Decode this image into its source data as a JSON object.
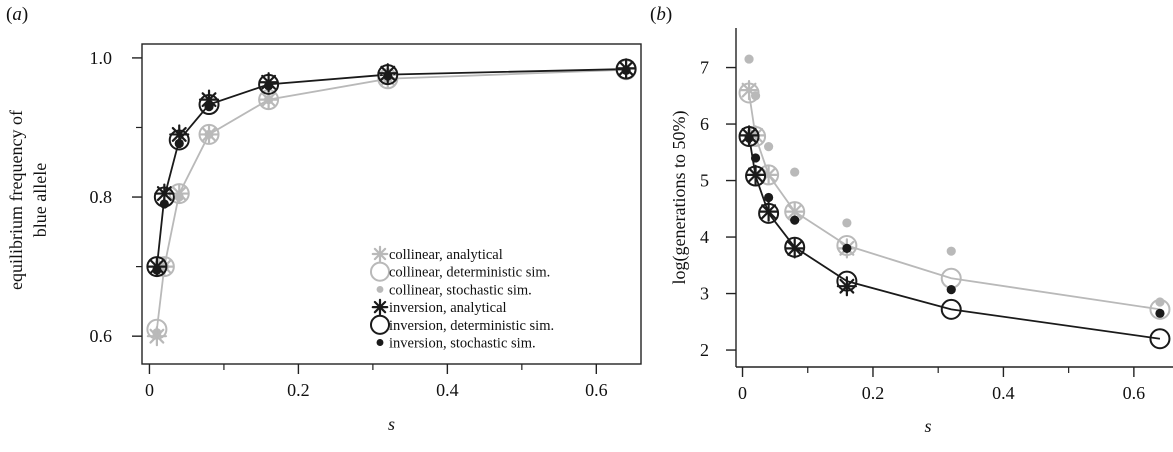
{
  "panels": [
    {
      "label": "(a)"
    },
    {
      "label": "(b)"
    }
  ],
  "colors": {
    "collinear": "#b9b9b9",
    "inversion": "#1a1a1a"
  },
  "legend": [
    {
      "key": "collinear_analytical",
      "label": "collinear, analytical",
      "marker": "asterisk",
      "color": "collinear"
    },
    {
      "key": "collinear_deterministic",
      "label": "collinear, deterministic sim.",
      "marker": "open-circle",
      "color": "collinear"
    },
    {
      "key": "collinear_stochastic",
      "label": "collinear, stochastic sim.",
      "marker": "dot",
      "color": "collinear"
    },
    {
      "key": "inversion_analytical",
      "label": "inversion, analytical",
      "marker": "asterisk",
      "color": "inversion"
    },
    {
      "key": "inversion_deterministic",
      "label": "inversion, deterministic sim.",
      "marker": "open-circle",
      "color": "inversion"
    },
    {
      "key": "inversion_stochastic",
      "label": "inversion, stochastic sim.",
      "marker": "dot",
      "color": "inversion"
    }
  ],
  "chart_data": [
    {
      "type": "line",
      "panel": "(a)",
      "xlabel": "s",
      "ylabel": "equilibrium frequency of blue allele",
      "ylabel_lines": [
        "equilibrium frequency of",
        "blue allele"
      ],
      "xlim": [
        -0.01,
        0.66
      ],
      "ylim": [
        0.56,
        1.02
      ],
      "xticks": [
        0,
        0.2,
        0.4,
        0.6
      ],
      "xtick_labels": [
        "0",
        "0.2",
        "0.4",
        "0.6"
      ],
      "yticks": [
        0.6,
        0.8,
        1.0
      ],
      "ytick_labels": [
        "0.6",
        "0.8",
        "1.0"
      ],
      "legend_position": "bottom-right",
      "x": [
        0.01,
        0.02,
        0.04,
        0.08,
        0.16,
        0.32,
        0.64
      ],
      "series": [
        {
          "name": "collinear, analytical",
          "color": "collinear",
          "marker": "asterisk",
          "line": false,
          "values": [
            0.6,
            0.7,
            0.805,
            0.89,
            0.94,
            0.97,
            0.985
          ]
        },
        {
          "name": "collinear, deterministic sim.",
          "color": "collinear",
          "marker": "open-circle",
          "line": true,
          "values": [
            0.61,
            0.7,
            0.805,
            0.89,
            0.94,
            0.97,
            0.983
          ]
        },
        {
          "name": "collinear, stochastic sim.",
          "color": "collinear",
          "marker": "dot",
          "line": false,
          "values": [
            0.605,
            0.7,
            0.8,
            0.89,
            0.94,
            0.97,
            0.982
          ]
        },
        {
          "name": "inversion, analytical",
          "color": "inversion",
          "marker": "asterisk",
          "line": false,
          "values": [
            0.7,
            0.805,
            0.89,
            0.94,
            0.965,
            0.978,
            0.985
          ]
        },
        {
          "name": "inversion, deterministic sim.",
          "color": "inversion",
          "marker": "open-circle",
          "line": true,
          "values": [
            0.7,
            0.8,
            0.882,
            0.933,
            0.962,
            0.976,
            0.984
          ]
        },
        {
          "name": "inversion, stochastic sim.",
          "color": "inversion",
          "marker": "dot",
          "line": false,
          "values": [
            0.695,
            0.79,
            0.877,
            0.93,
            0.96,
            0.974,
            0.982
          ]
        }
      ]
    },
    {
      "type": "line",
      "panel": "(b)",
      "xlabel": "s",
      "ylabel": "log(generations to 50%)",
      "xlim": [
        -0.01,
        0.66
      ],
      "ylim": [
        1.7,
        7.7
      ],
      "xticks": [
        0,
        0.2,
        0.4,
        0.6
      ],
      "xtick_labels": [
        "0",
        "0.2",
        "0.4",
        "0.6"
      ],
      "yticks": [
        2,
        3,
        4,
        5,
        6,
        7
      ],
      "ytick_labels": [
        "2",
        "3",
        "4",
        "5",
        "6",
        "7"
      ],
      "x": [
        0.01,
        0.02,
        0.04,
        0.08,
        0.16,
        0.32,
        0.64
      ],
      "series": [
        {
          "name": "collinear, analytical",
          "color": "collinear",
          "marker": "asterisk",
          "line": false,
          "values": [
            6.6,
            5.8,
            5.1,
            4.45,
            3.8,
            null,
            null
          ]
        },
        {
          "name": "collinear, deterministic sim.",
          "color": "collinear",
          "marker": "open-circle",
          "line": true,
          "values": [
            6.55,
            5.78,
            5.1,
            4.45,
            3.85,
            3.27,
            2.72
          ]
        },
        {
          "name": "collinear, stochastic sim.",
          "color": "collinear",
          "marker": "dot",
          "line": false,
          "values": [
            7.15,
            6.5,
            5.6,
            5.15,
            4.25,
            3.75,
            2.85
          ]
        },
        {
          "name": "inversion, analytical",
          "color": "inversion",
          "marker": "asterisk",
          "line": false,
          "values": [
            5.8,
            5.1,
            4.45,
            3.8,
            3.13,
            null,
            null
          ]
        },
        {
          "name": "inversion, deterministic sim.",
          "color": "inversion",
          "marker": "open-circle",
          "line": true,
          "values": [
            5.78,
            5.08,
            4.42,
            3.82,
            3.22,
            2.72,
            2.2
          ]
        },
        {
          "name": "inversion, stochastic sim.",
          "color": "inversion",
          "marker": "dot",
          "line": false,
          "values": [
            5.75,
            5.4,
            4.7,
            4.3,
            3.8,
            3.07,
            2.65
          ]
        }
      ]
    }
  ]
}
